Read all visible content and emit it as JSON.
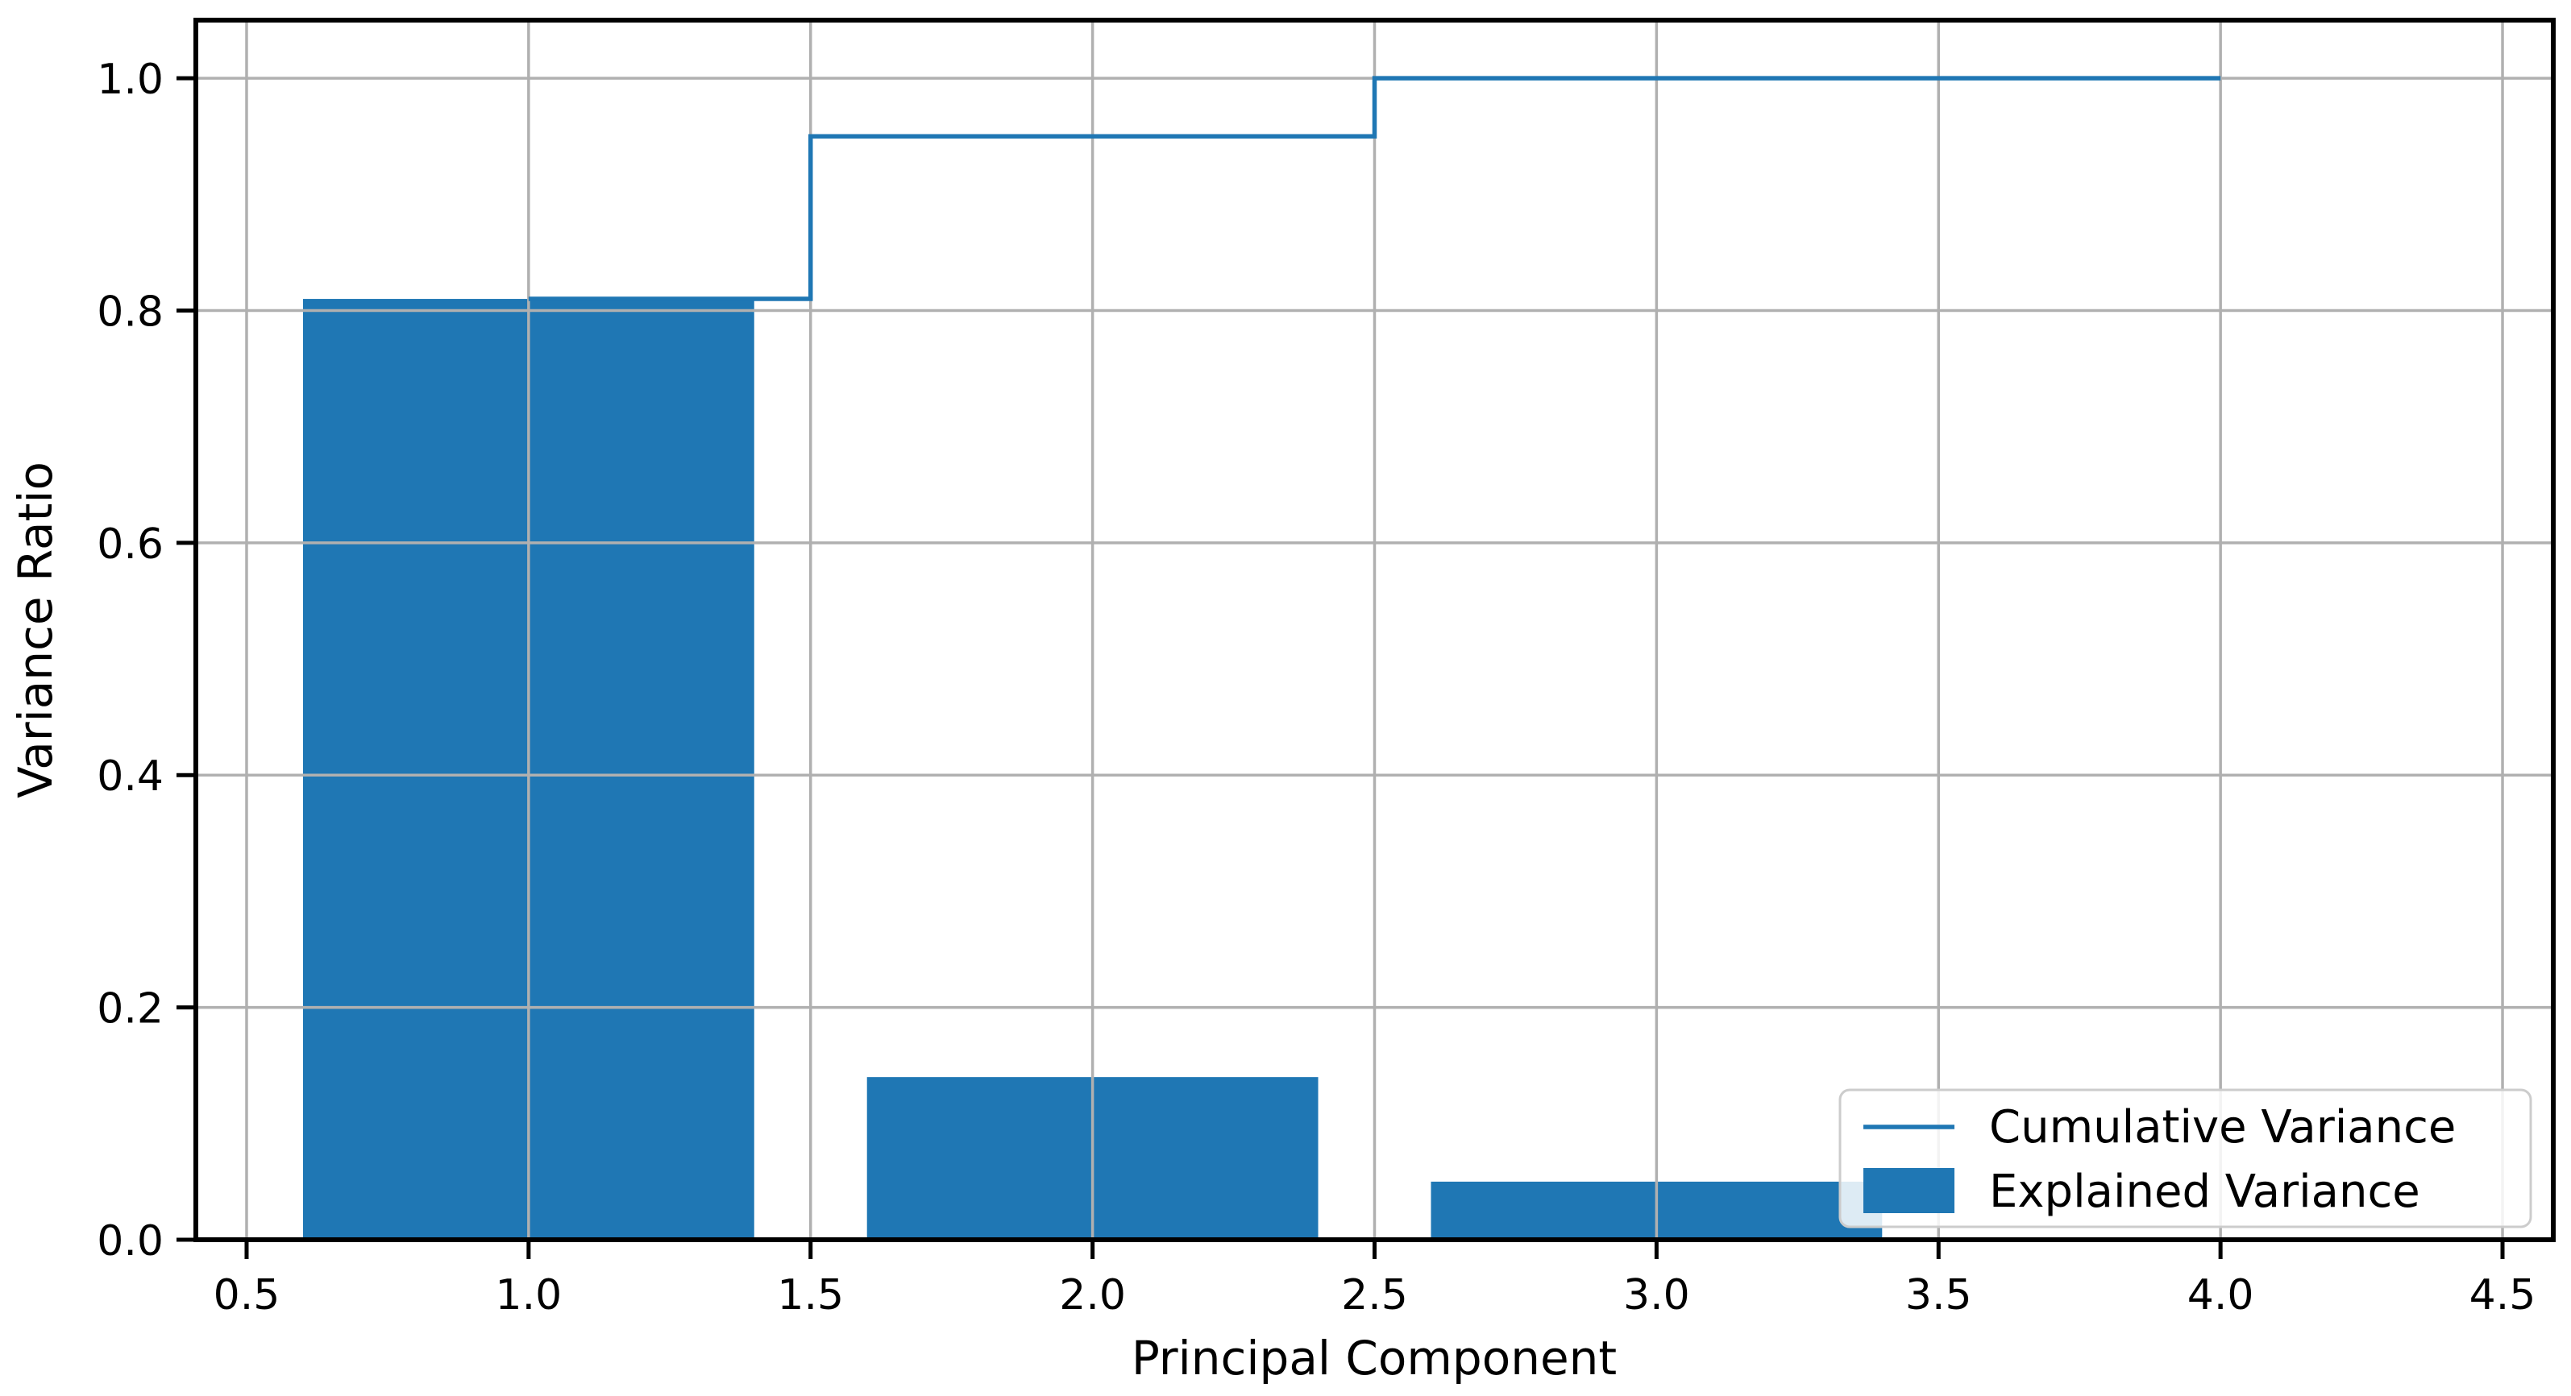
{
  "chart_data": {
    "type": "bar",
    "title": "",
    "xlabel": "Principal Component",
    "ylabel": "Variance Ratio",
    "x": [
      1,
      2,
      3,
      4
    ],
    "series": [
      {
        "name": "Explained Variance",
        "type": "bar",
        "values": [
          0.81,
          0.14,
          0.05,
          0.0
        ]
      },
      {
        "name": "Cumulative Variance",
        "type": "step-mid",
        "values": [
          0.81,
          0.95,
          1.0,
          1.0
        ]
      }
    ],
    "bar_width": 0.8,
    "xlim": [
      0.41,
      4.59
    ],
    "ylim": [
      0,
      1.05
    ],
    "xticks": [
      0.5,
      1.0,
      1.5,
      2.0,
      2.5,
      3.0,
      3.5,
      4.0,
      4.5
    ],
    "xtick_labels": [
      "0.5",
      "1.0",
      "1.5",
      "2.0",
      "2.5",
      "3.0",
      "3.5",
      "4.0",
      "4.5"
    ],
    "yticks": [
      0.0,
      0.2,
      0.4,
      0.6,
      0.8,
      1.0
    ],
    "ytick_labels": [
      "0.0",
      "0.2",
      "0.4",
      "0.6",
      "0.8",
      "1.0"
    ],
    "grid": true,
    "grid_above_bars": true,
    "legend_position": "lower right",
    "colors": {
      "bar": "#1f77b4",
      "line": "#1f77b4",
      "grid": "#b0b0b0",
      "spine": "#000000",
      "text": "#000000",
      "legend_border": "#cccccc",
      "legend_bg": "#ffffff"
    }
  },
  "legend": {
    "items": [
      {
        "label": "Cumulative Variance",
        "swatch": "line"
      },
      {
        "label": "Explained Variance",
        "swatch": "bar"
      }
    ]
  }
}
